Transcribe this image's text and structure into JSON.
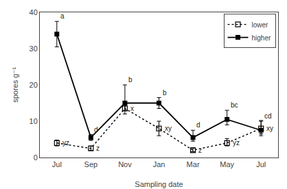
{
  "chart_data": {
    "type": "line",
    "categories": [
      "Jul",
      "Sep",
      "Nov",
      "Jan",
      "Mar",
      "May",
      "Jul"
    ],
    "xlabel": "Sampling date",
    "ylabel": "spores g⁻¹",
    "ylim": [
      0,
      40
    ],
    "yticks": [
      0,
      10,
      20,
      30,
      40
    ],
    "grid": false,
    "legend": "upper right",
    "series": [
      {
        "name": "lower",
        "color": "black",
        "marker": "square-open",
        "line_style": "dotted",
        "values": [
          4.0,
          2.5,
          13.5,
          8.0,
          2.0,
          4.0,
          8.0
        ],
        "yerr_neg": [
          0.8,
          0.5,
          1.5,
          2.0,
          0.4,
          0.8,
          1.5
        ],
        "yerr_pos": [
          0.8,
          0.7,
          1.8,
          2.0,
          0.6,
          1.2,
          2.2
        ],
        "labels": [
          "yz",
          "z",
          "x",
          "xy",
          "z",
          "yz",
          "xy"
        ]
      },
      {
        "name": "higher",
        "color": "black",
        "marker": "square",
        "line_style": "solid",
        "values": [
          34.0,
          5.5,
          15.0,
          15.0,
          5.5,
          10.5,
          7.5
        ],
        "yerr_neg": [
          3.5,
          0.8,
          2.0,
          1.5,
          1.0,
          1.5,
          1.5
        ],
        "yerr_pos": [
          3.5,
          0.8,
          5.0,
          1.5,
          2.0,
          2.5,
          2.5
        ],
        "labels": [
          "a",
          "d",
          "b",
          "b",
          "d",
          "bc",
          "cd"
        ]
      }
    ]
  }
}
